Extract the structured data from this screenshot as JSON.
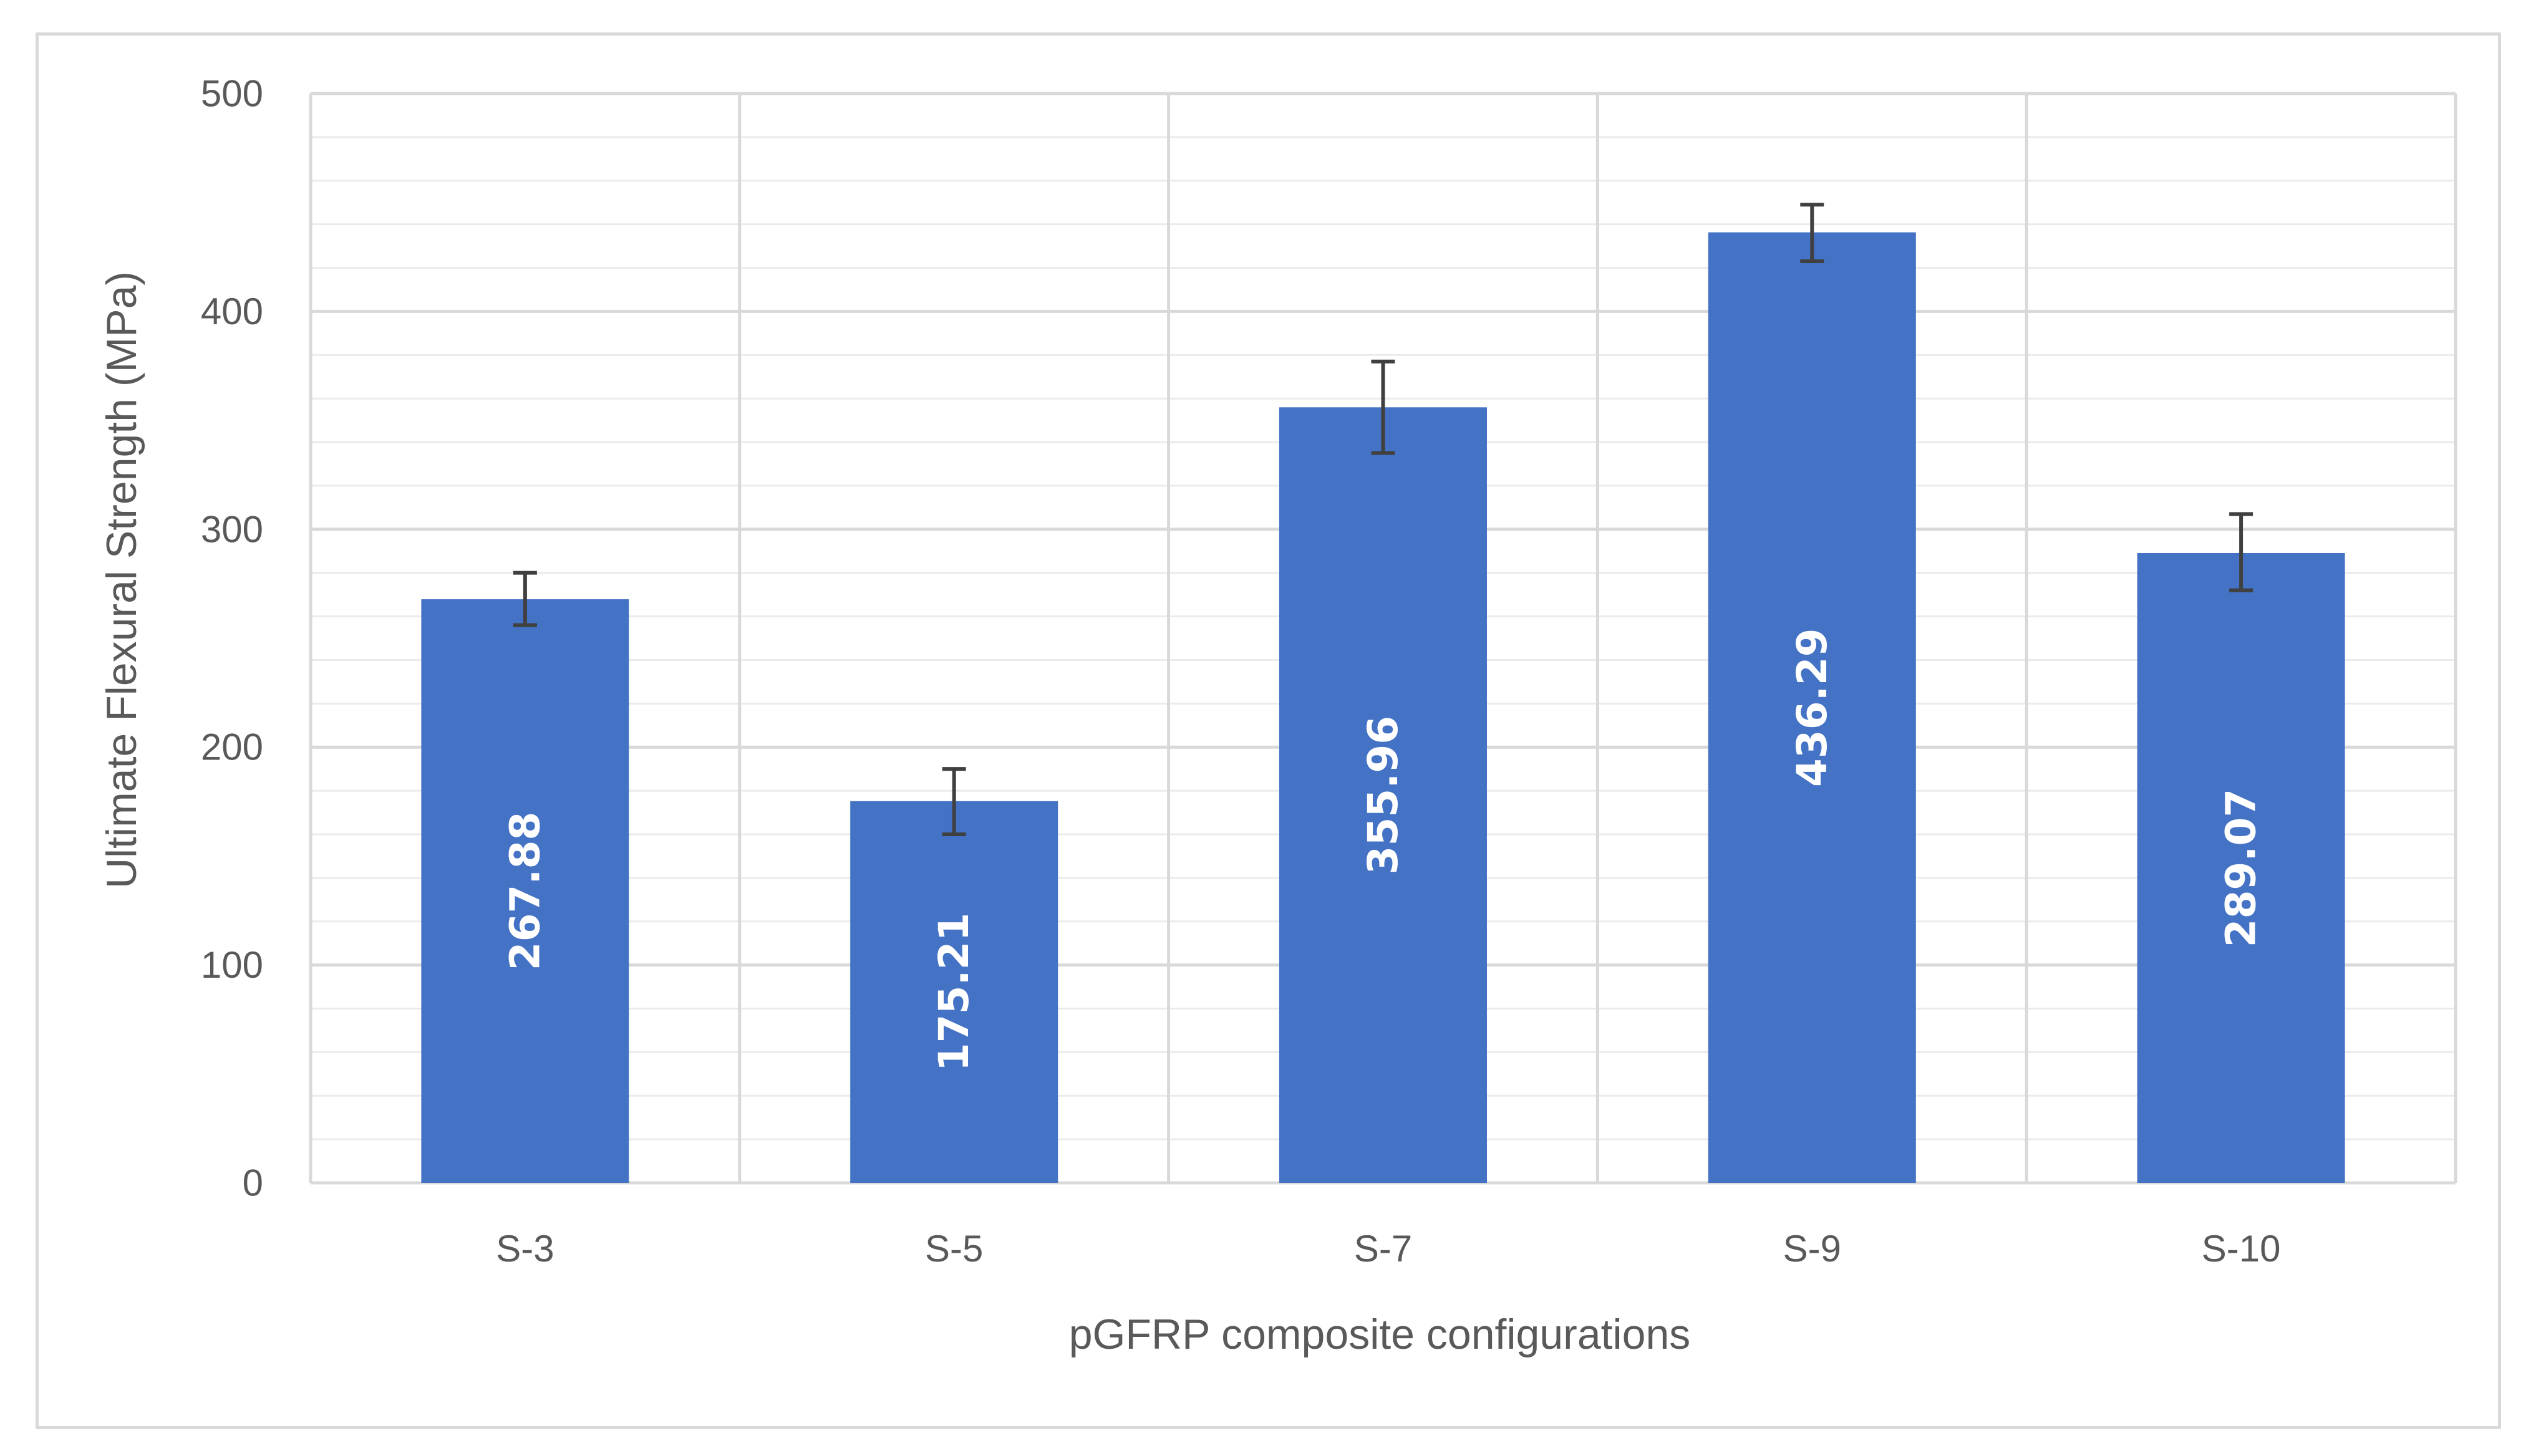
{
  "chart_data": {
    "type": "bar",
    "categories": [
      "S-3",
      "S-5",
      "S-7",
      "S-9",
      "S-10"
    ],
    "values": [
      267.88,
      175.21,
      355.96,
      436.29,
      289.07
    ],
    "data_labels": [
      "267.88",
      "175.21",
      "355.96",
      "436.29",
      "289.07"
    ],
    "error_upper": [
      280,
      190,
      377,
      449,
      307
    ],
    "error_lower": [
      256,
      160,
      335,
      423,
      272
    ],
    "title": "",
    "xlabel": "pGFRP composite configurations",
    "ylabel": "Ultimate Flexural Strength (MPa)",
    "ylim": [
      0,
      500
    ],
    "yticks": [
      "0",
      "100",
      "200",
      "300",
      "400",
      "500"
    ],
    "grid": true,
    "legend": "none",
    "colors": {
      "bar": "#4472C4",
      "error_bar": "#404040",
      "major_grid": "#d9d9d9",
      "minor_grid": "#ebebeb",
      "text": "#595959",
      "data_label": "#ffffff"
    }
  }
}
